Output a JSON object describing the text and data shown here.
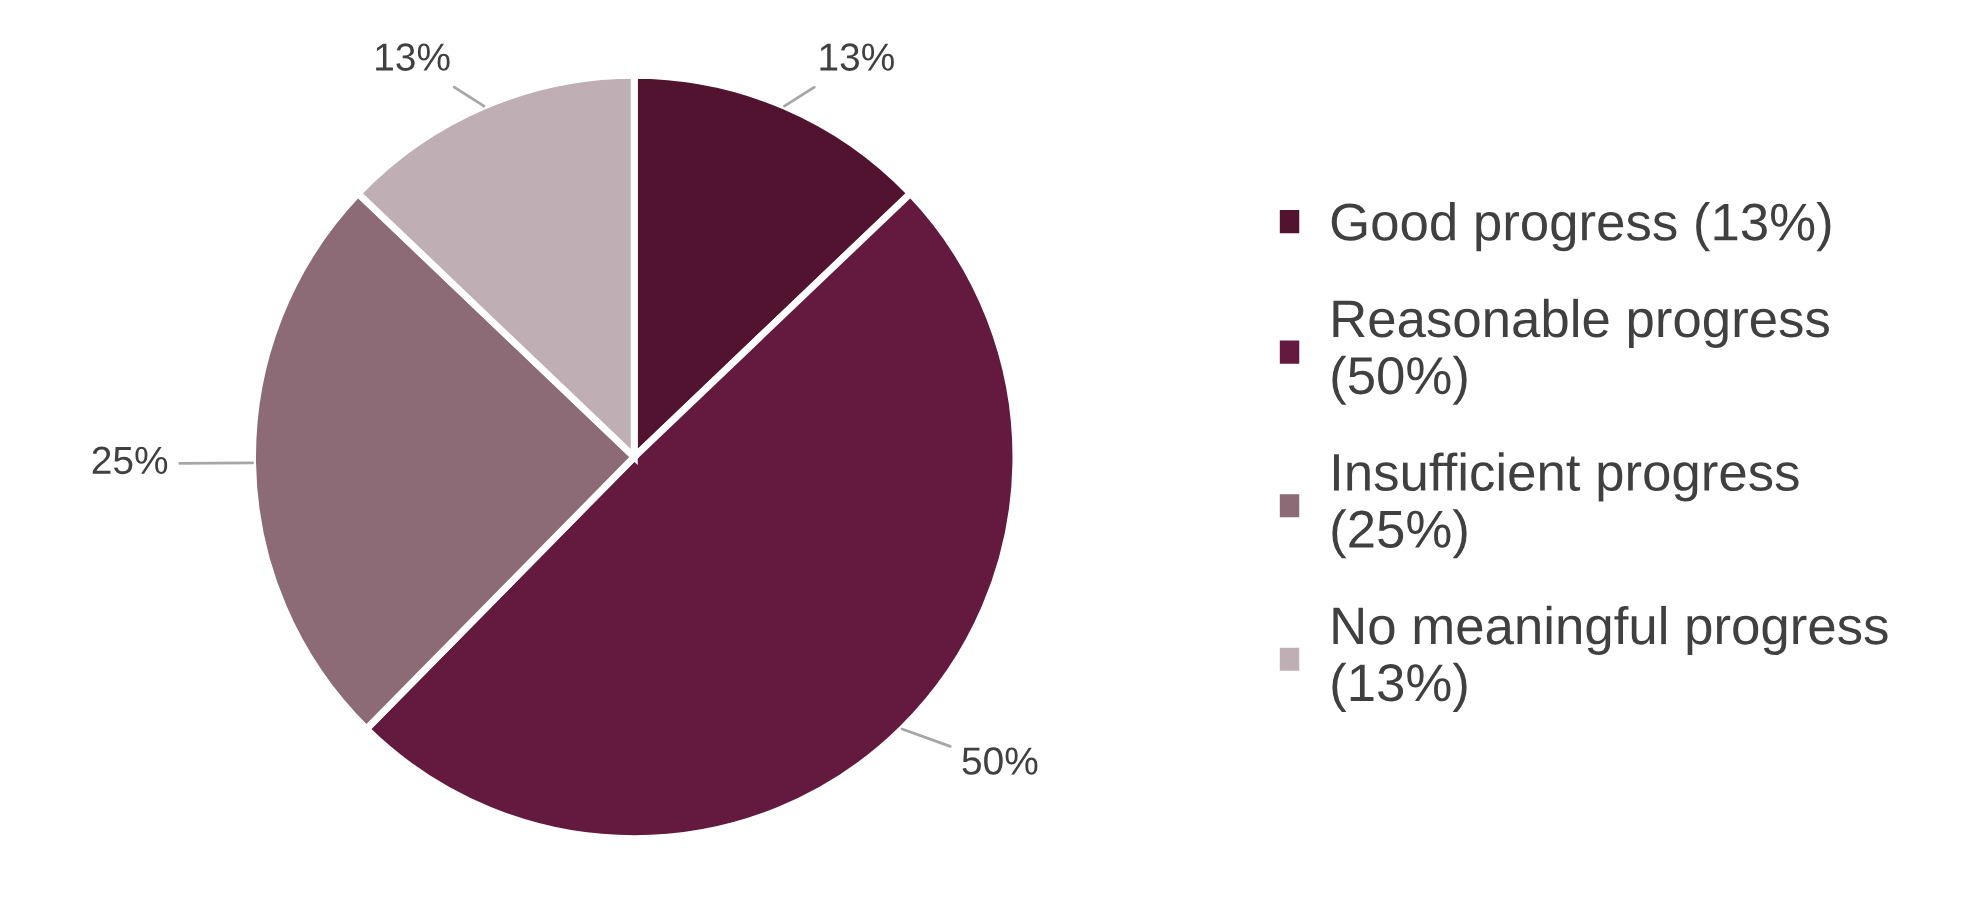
{
  "chart_data": {
    "type": "pie",
    "categories": [
      "Good progress (13%)",
      "Reasonable progress (50%)",
      "Insufficient progress (25%)",
      "No meaningful progress (13%)"
    ],
    "values": [
      13,
      50,
      25,
      13
    ],
    "colors": [
      "#521330",
      "#641a3f",
      "#8c6b76",
      "#bfaeb3"
    ],
    "value_labels": [
      "13%",
      "50%",
      "25%",
      "13%"
    ],
    "legend": "right"
  }
}
